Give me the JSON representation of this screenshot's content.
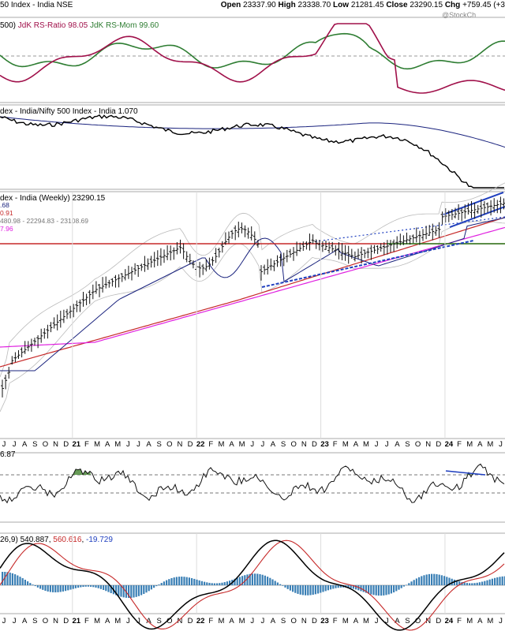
{
  "header": {
    "title": "50 Index - India NSE",
    "ohlc": [
      {
        "label": "Open",
        "value": "23337.90"
      },
      {
        "label": "High",
        "value": "23338.70"
      },
      {
        "label": "Low",
        "value": "21281.45"
      },
      {
        "label": "Close",
        "value": "23290.15"
      },
      {
        "label": "Chg",
        "value": "+759.45 (+3"
      }
    ],
    "watermark": "@StockCh"
  },
  "colors": {
    "green": "#2e7d32",
    "maroon": "#a0104a",
    "black": "#000000",
    "navy": "#1a237e",
    "blue": "#1f3fbf",
    "magenta": "#e020e0",
    "red": "#c62828",
    "hist": "#3a7fb5",
    "area_fill": "#4c8b3a"
  },
  "chart_data": [
    {
      "type": "line",
      "panel": "rrg",
      "label_parts": [
        {
          "text": "500) ",
          "color": "#000000"
        },
        {
          "text": "JdK RS-Ratio 98.05 ",
          "color": "#a0104a"
        },
        {
          "text": "JdK RS-Mom 99.60",
          "color": "#2e7d32"
        }
      ],
      "series": [
        {
          "name": "JdK RS-Ratio",
          "last": 98.05,
          "color": "#a0104a"
        },
        {
          "name": "JdK RS-Mom",
          "last": 99.6,
          "color": "#2e7d32"
        }
      ]
    },
    {
      "type": "line",
      "panel": "relative",
      "label_parts": [
        {
          "text": "dex - India/Nifty 500 Index - India 1.070",
          "color": "#000000"
        }
      ],
      "series": [
        {
          "name": "India/Nifty 500 Index - India",
          "last": 1.07,
          "color": "#000000"
        }
      ]
    },
    {
      "type": "candlestick",
      "panel": "price",
      "label_parts": [
        {
          "text": "dex - India (Weekly) 23290.15",
          "color": "#000000"
        }
      ],
      "side_labels": [
        {
          "text": ".68",
          "color": "#1a237e"
        },
        {
          "text": "0.91",
          "color": "#c62828"
        },
        {
          "text": "480.98 - 22294.83 - 23108.69",
          "color": "#777777"
        },
        {
          "text": "7.96",
          "color": "#e020e0"
        }
      ],
      "last": 23290.15,
      "timeframe": "Weekly"
    },
    {
      "type": "line",
      "panel": "oscillator",
      "label_parts": [
        {
          "text": "6.87",
          "color": "#000000"
        }
      ],
      "last": 6.87
    },
    {
      "type": "line",
      "panel": "macd",
      "label_parts": [
        {
          "text": "26,9) 540.887, ",
          "color": "#000000"
        },
        {
          "text": "560.616",
          "color": "#c62828"
        },
        {
          "text": ", ",
          "color": "#000000"
        },
        {
          "text": "-19.729",
          "color": "#1f3fbf"
        }
      ],
      "series": [
        {
          "name": "MACD",
          "last": 540.887,
          "color": "#000000"
        },
        {
          "name": "Signal",
          "last": 560.616,
          "color": "#c62828"
        },
        {
          "name": "Histogram",
          "last": -19.729,
          "color": "#3a7fb5"
        }
      ]
    }
  ],
  "time_axis": {
    "labels": [
      "J",
      "J",
      "A",
      "S",
      "O",
      "N",
      "D",
      "21",
      "F",
      "M",
      "A",
      "M",
      "J",
      "J",
      "A",
      "S",
      "O",
      "N",
      "D",
      "22",
      "F",
      "M",
      "A",
      "M",
      "J",
      "J",
      "A",
      "S",
      "O",
      "N",
      "D",
      "23",
      "F",
      "M",
      "A",
      "M",
      "J",
      "J",
      "A",
      "S",
      "O",
      "N",
      "D",
      "24",
      "F",
      "M",
      "A",
      "M",
      "J"
    ],
    "year_labels": [
      "21",
      "22",
      "23",
      "24"
    ]
  }
}
